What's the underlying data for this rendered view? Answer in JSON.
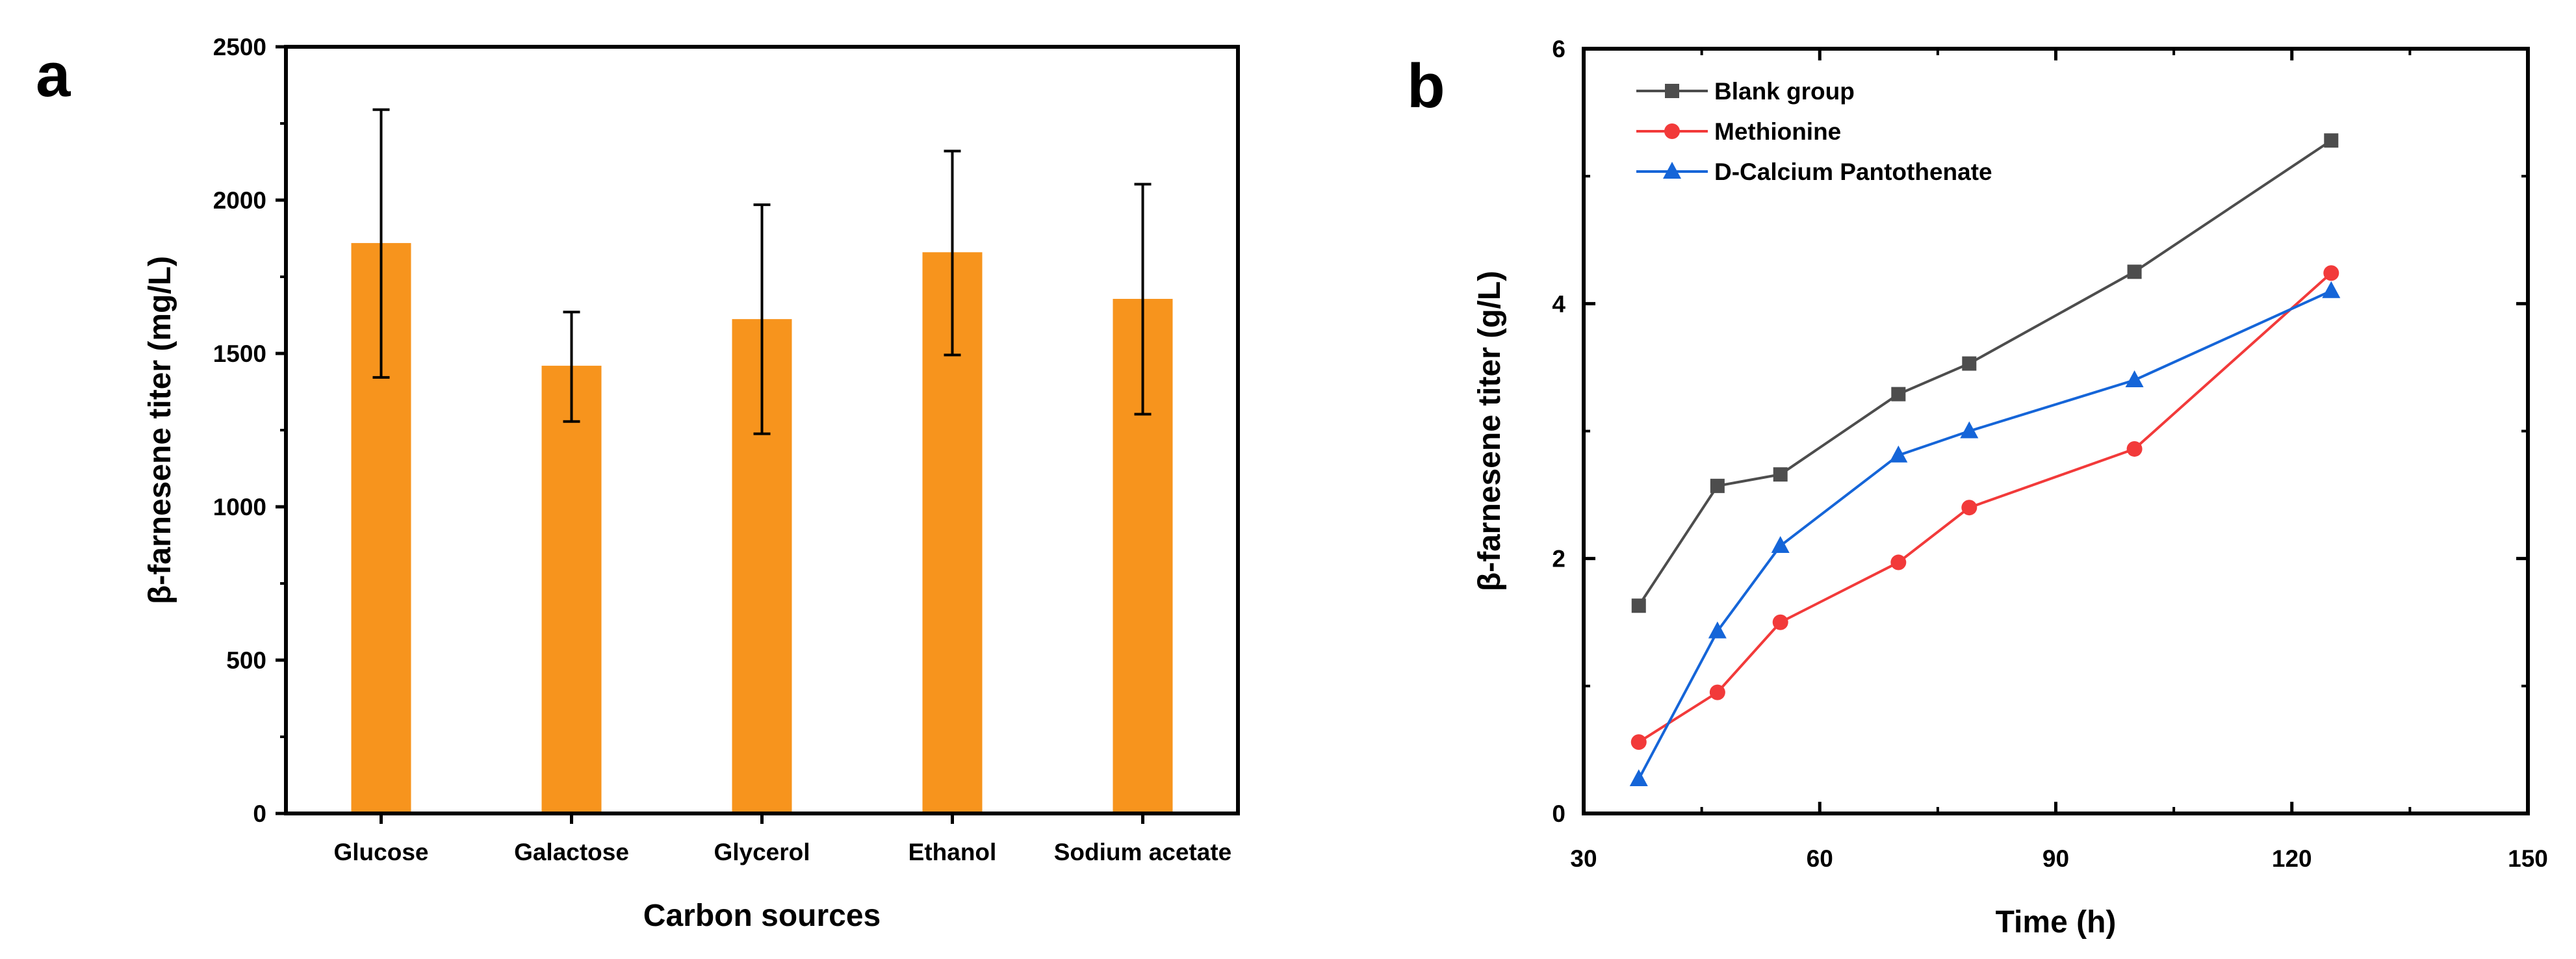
{
  "panels": {
    "a": "a",
    "b": "b"
  },
  "chart_data": [
    {
      "panel": "a",
      "type": "bar",
      "title": "",
      "xlabel": "Carbon sources",
      "ylabel": "β-farnesene titer (mg/L)",
      "ylim": [
        0,
        2500
      ],
      "yticks": [
        0,
        500,
        1000,
        1500,
        2000,
        2500
      ],
      "categories": [
        "Glucose",
        "Galactose",
        "Glycerol",
        "Ethanol",
        "Sodium acetate"
      ],
      "values": [
        1860,
        1460,
        1612,
        1830,
        1678
      ],
      "error_low": [
        1422,
        1278,
        1238,
        1495,
        1302
      ],
      "error_high": [
        2295,
        1635,
        1985,
        2160,
        2052
      ],
      "bar_color": "#F7941D",
      "grid": false
    },
    {
      "panel": "b",
      "type": "line",
      "title": "",
      "xlabel": "Time (h)",
      "ylabel": "β-farnesene titer (g/L)",
      "xlim": [
        30,
        150
      ],
      "ylim": [
        0,
        6
      ],
      "xticks": [
        30,
        60,
        90,
        120,
        150
      ],
      "yticks": [
        0,
        2,
        4,
        6
      ],
      "legend_position": "top-left",
      "grid": false,
      "series": [
        {
          "name": "Blank group",
          "color": "#4D4D4D",
          "marker": "square",
          "x": [
            37,
            47,
            55,
            70,
            79,
            100,
            125
          ],
          "y": [
            1.63,
            2.57,
            2.66,
            3.29,
            3.53,
            4.25,
            5.28
          ]
        },
        {
          "name": "Methionine",
          "color": "#F23A3A",
          "marker": "circle",
          "x": [
            37,
            47,
            55,
            70,
            79,
            100,
            125
          ],
          "y": [
            0.56,
            0.95,
            1.5,
            1.97,
            2.4,
            2.86,
            4.24
          ]
        },
        {
          "name": "D-Calcium Pantothenate",
          "color": "#1565D8",
          "marker": "triangle",
          "x": [
            37,
            47,
            55,
            70,
            79,
            100,
            125
          ],
          "y": [
            0.27,
            1.43,
            2.1,
            2.81,
            3.0,
            3.4,
            4.1
          ]
        }
      ]
    }
  ]
}
